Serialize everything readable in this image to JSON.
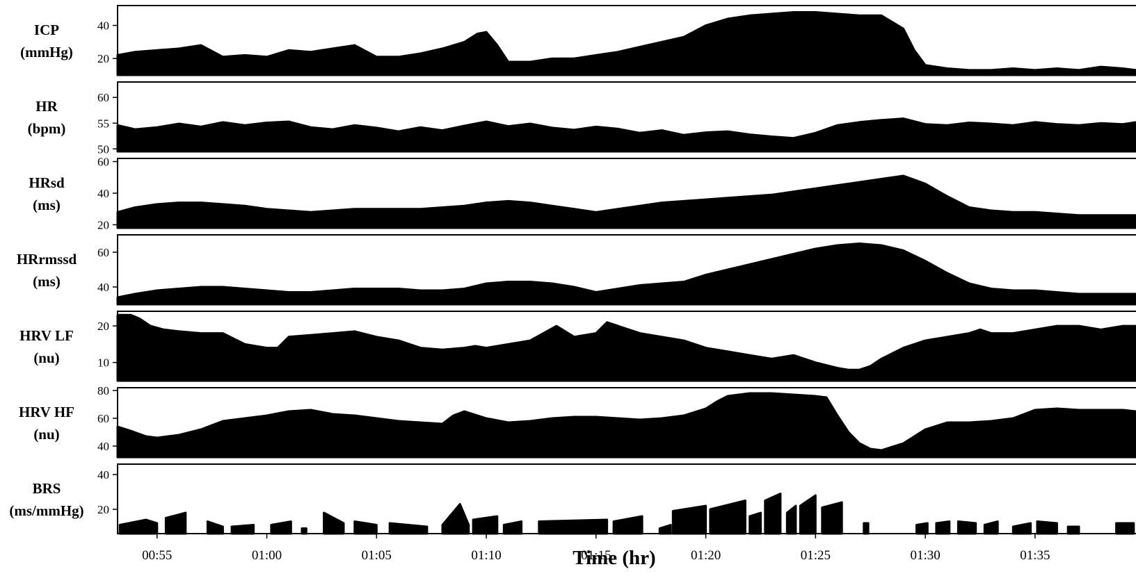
{
  "chart_data": {
    "type": "area",
    "xlabel": "Time (hr)",
    "x_ticks": [
      "00:55",
      "01:00",
      "01:05",
      "01:10",
      "01:15",
      "01:20",
      "01:25",
      "01:30",
      "01:35"
    ],
    "x_tick_minutes": [
      55,
      60,
      65,
      70,
      75,
      80,
      85,
      90,
      95
    ],
    "xlim_minutes": [
      53.2,
      99.6
    ],
    "grid": false,
    "legend": "none",
    "fill_color": "#000000",
    "panels": [
      {
        "label_lines": [
          "ICP",
          "(mmHg)"
        ],
        "ylim": [
          10,
          52
        ],
        "yticks": [
          20,
          40
        ],
        "x": [
          53.2,
          54,
          55,
          56,
          57,
          58,
          59,
          60,
          61,
          62,
          63,
          64,
          65,
          66,
          67,
          68,
          69,
          69.6,
          70,
          70.5,
          71,
          72,
          73,
          74,
          75,
          76,
          77,
          78,
          79,
          80,
          81,
          82,
          83,
          84,
          85,
          86,
          87,
          88,
          89,
          89.5,
          90,
          91,
          92,
          93,
          94,
          95,
          96,
          97,
          98,
          99,
          99.6
        ],
        "y": [
          22,
          24,
          25,
          26,
          28,
          21,
          22,
          21,
          25,
          24,
          26,
          28,
          21,
          21,
          23,
          26,
          30,
          35,
          36,
          28,
          18,
          18,
          20,
          20,
          22,
          24,
          27,
          30,
          33,
          40,
          44,
          46,
          47,
          48,
          48,
          47,
          46,
          46,
          38,
          25,
          16,
          14,
          13,
          13,
          14,
          13,
          14,
          13,
          15,
          14,
          13
        ]
      },
      {
        "label_lines": [
          "HR",
          "(bpm)"
        ],
        "ylim": [
          49.5,
          63
        ],
        "yticks": [
          50,
          55,
          60
        ],
        "x": [
          53.2,
          54,
          55,
          56,
          57,
          58,
          59,
          60,
          61,
          62,
          63,
          64,
          65,
          66,
          67,
          68,
          69,
          70,
          71,
          72,
          73,
          74,
          75,
          76,
          77,
          78,
          79,
          80,
          81,
          82,
          83,
          84,
          85,
          86,
          87,
          88,
          89,
          90,
          91,
          92,
          93,
          94,
          95,
          96,
          97,
          98,
          99,
          99.6
        ],
        "y": [
          54.6,
          53.8,
          54.2,
          54.9,
          54.3,
          55.2,
          54.6,
          55.1,
          55.3,
          54.2,
          53.8,
          54.6,
          54.1,
          53.4,
          54.2,
          53.6,
          54.5,
          55.3,
          54.4,
          54.9,
          54.1,
          53.7,
          54.3,
          53.9,
          53.1,
          53.6,
          52.7,
          53.2,
          53.4,
          52.8,
          52.4,
          52.1,
          53.1,
          54.6,
          55.2,
          55.6,
          55.9,
          54.8,
          54.6,
          55.1,
          54.9,
          54.6,
          55.2,
          54.8,
          54.6,
          55.0,
          54.8,
          55.2
        ]
      },
      {
        "label_lines": [
          "HRsd",
          "(ms)"
        ],
        "ylim": [
          18,
          62
        ],
        "yticks": [
          20,
          40,
          60
        ],
        "x": [
          53.2,
          54,
          55,
          56,
          57,
          58,
          59,
          60,
          61,
          62,
          63,
          64,
          65,
          66,
          67,
          68,
          69,
          70,
          71,
          72,
          73,
          74,
          75,
          76,
          77,
          78,
          79,
          80,
          81,
          82,
          83,
          84,
          85,
          86,
          87,
          88,
          89,
          90,
          91,
          92,
          93,
          94,
          95,
          96,
          97,
          98,
          99,
          99.6
        ],
        "y": [
          28,
          31,
          33,
          34,
          34,
          33,
          32,
          30,
          29,
          28,
          29,
          30,
          30,
          30,
          30,
          31,
          32,
          34,
          35,
          34,
          32,
          30,
          28,
          30,
          32,
          34,
          35,
          36,
          37,
          38,
          39,
          41,
          43,
          45,
          47,
          49,
          51,
          46,
          38,
          31,
          29,
          28,
          28,
          27,
          26,
          26,
          26,
          26
        ]
      },
      {
        "label_lines": [
          "HRrmssd",
          "(ms)"
        ],
        "ylim": [
          30,
          70
        ],
        "yticks": [
          40,
          60
        ],
        "x": [
          53.2,
          54,
          55,
          56,
          57,
          58,
          59,
          60,
          61,
          62,
          63,
          64,
          65,
          66,
          67,
          68,
          69,
          70,
          71,
          72,
          73,
          74,
          75,
          76,
          77,
          78,
          79,
          80,
          81,
          82,
          83,
          84,
          85,
          86,
          87,
          88,
          89,
          90,
          91,
          92,
          93,
          94,
          95,
          96,
          97,
          98,
          99,
          99.6
        ],
        "y": [
          34,
          36,
          38,
          39,
          40,
          40,
          39,
          38,
          37,
          37,
          38,
          39,
          39,
          39,
          38,
          38,
          39,
          42,
          43,
          43,
          42,
          40,
          37,
          39,
          41,
          42,
          43,
          47,
          50,
          53,
          56,
          59,
          62,
          64,
          65,
          64,
          61,
          55,
          48,
          42,
          39,
          38,
          38,
          37,
          36,
          36,
          36,
          36
        ]
      },
      {
        "label_lines": [
          "HRV LF",
          "(nu)"
        ],
        "ylim": [
          5,
          24
        ],
        "yticks": [
          10,
          20
        ],
        "x": [
          53.2,
          53.8,
          54.2,
          54.7,
          55.3,
          56,
          57,
          58,
          59,
          60,
          60.5,
          61,
          62,
          63,
          64,
          65,
          66,
          67,
          68,
          69,
          69.5,
          70,
          71,
          72,
          72.9,
          73.2,
          74,
          75,
          75.5,
          76,
          77,
          78,
          79,
          80,
          81,
          82,
          83,
          84,
          85,
          86,
          86.5,
          87,
          87.5,
          88,
          89,
          90,
          91,
          92,
          92.5,
          93,
          94,
          95,
          96,
          97,
          98,
          99,
          99.6
        ],
        "y": [
          23,
          23,
          22,
          20,
          19,
          18.5,
          18,
          18,
          15,
          14,
          14,
          17,
          17.5,
          18,
          18.5,
          17,
          16,
          14,
          13.5,
          14,
          14.5,
          14,
          15,
          16,
          19,
          20,
          17,
          18,
          21,
          20,
          18,
          17,
          16,
          14,
          13,
          12,
          11,
          12,
          10,
          8.5,
          8,
          8,
          9,
          11,
          14,
          16,
          17,
          18,
          19,
          18,
          18,
          19,
          20,
          20,
          19,
          20,
          20
        ]
      },
      {
        "label_lines": [
          "HRV HF",
          "(nu)"
        ],
        "ylim": [
          32,
          82
        ],
        "yticks": [
          40,
          60,
          80
        ],
        "x": [
          53.2,
          53.8,
          54.5,
          55,
          56,
          57,
          58,
          59,
          60,
          61,
          62,
          63,
          64,
          65,
          66,
          67,
          68,
          68.5,
          69,
          70,
          71,
          72,
          73,
          74,
          75,
          76,
          77,
          78,
          79,
          80,
          80.5,
          81,
          82,
          83,
          84,
          85,
          85.5,
          86,
          86.5,
          87,
          87.5,
          88,
          89,
          90,
          91,
          92,
          93,
          94,
          95,
          96,
          97,
          98,
          99,
          99.6
        ],
        "y": [
          54,
          51,
          47,
          46,
          48,
          52,
          58,
          60,
          62,
          65,
          66,
          63,
          62,
          60,
          58,
          57,
          56,
          62,
          65,
          60,
          57,
          58,
          60,
          61,
          61,
          60,
          59,
          60,
          62,
          67,
          72,
          76,
          78,
          78,
          77,
          76,
          75,
          62,
          50,
          42,
          38,
          37,
          42,
          52,
          57,
          57,
          58,
          60,
          66,
          67,
          66,
          66,
          66,
          65
        ]
      },
      {
        "label_lines": [
          "BRS",
          "(ms/mmHg)"
        ],
        "ylim": [
          6,
          46
        ],
        "yticks": [
          20,
          40
        ],
        "segments": [
          {
            "x": [
              53.3,
              54.5,
              55.0
            ],
            "y": [
              11,
              14,
              12
            ]
          },
          {
            "x": [
              55.4,
              56.3
            ],
            "y": [
              15,
              18
            ]
          },
          {
            "x": [
              57.3,
              58.0
            ],
            "y": [
              13,
              10
            ]
          },
          {
            "x": [
              58.4,
              59.4
            ],
            "y": [
              10,
              11
            ]
          },
          {
            "x": [
              60.2,
              61.1
            ],
            "y": [
              11,
              13
            ]
          },
          {
            "x": [
              61.6,
              61.8
            ],
            "y": [
              9,
              9
            ]
          },
          {
            "x": [
              62.6,
              63.5
            ],
            "y": [
              18,
              12
            ]
          },
          {
            "x": [
              64.0,
              65.0
            ],
            "y": [
              13,
              11
            ]
          },
          {
            "x": [
              65.6,
              67.3
            ],
            "y": [
              12,
              10
            ]
          },
          {
            "x": [
              68.0,
              68.8,
              69.2
            ],
            "y": [
              11,
              23,
              11
            ]
          },
          {
            "x": [
              69.4,
              70.5
            ],
            "y": [
              14,
              16
            ]
          },
          {
            "x": [
              70.8,
              71.6
            ],
            "y": [
              11,
              13
            ]
          },
          {
            "x": [
              72.4,
              75.5
            ],
            "y": [
              13,
              14
            ]
          },
          {
            "x": [
              75.8,
              77.1
            ],
            "y": [
              13,
              16
            ]
          },
          {
            "x": [
              77.9,
              78.4
            ],
            "y": [
              9,
              11
            ]
          },
          {
            "x": [
              78.5,
              80.0
            ],
            "y": [
              19,
              22
            ]
          },
          {
            "x": [
              80.2,
              81.8
            ],
            "y": [
              20,
              25
            ]
          },
          {
            "x": [
              82.0,
              82.5
            ],
            "y": [
              16,
              18
            ]
          },
          {
            "x": [
              82.7,
              83.4
            ],
            "y": [
              25,
              29
            ]
          },
          {
            "x": [
              83.7,
              84.1
            ],
            "y": [
              18,
              22
            ]
          },
          {
            "x": [
              84.3,
              85.0
            ],
            "y": [
              22,
              28
            ]
          },
          {
            "x": [
              85.3,
              86.2
            ],
            "y": [
              21,
              24
            ]
          },
          {
            "x": [
              87.2,
              87.4
            ],
            "y": [
              12,
              12
            ]
          },
          {
            "x": [
              89.6,
              90.1
            ],
            "y": [
              11,
              12
            ]
          },
          {
            "x": [
              90.5,
              91.1
            ],
            "y": [
              12,
              13
            ]
          },
          {
            "x": [
              91.5,
              92.3
            ],
            "y": [
              13,
              12
            ]
          },
          {
            "x": [
              92.7,
              93.3
            ],
            "y": [
              11,
              13
            ]
          },
          {
            "x": [
              94.0,
              94.8
            ],
            "y": [
              10,
              12
            ]
          },
          {
            "x": [
              95.1,
              96.0
            ],
            "y": [
              13,
              12
            ]
          },
          {
            "x": [
              96.5,
              97.0
            ],
            "y": [
              10,
              10
            ]
          },
          {
            "x": [
              98.7,
              99.5
            ],
            "y": [
              12,
              12
            ]
          }
        ]
      }
    ]
  }
}
